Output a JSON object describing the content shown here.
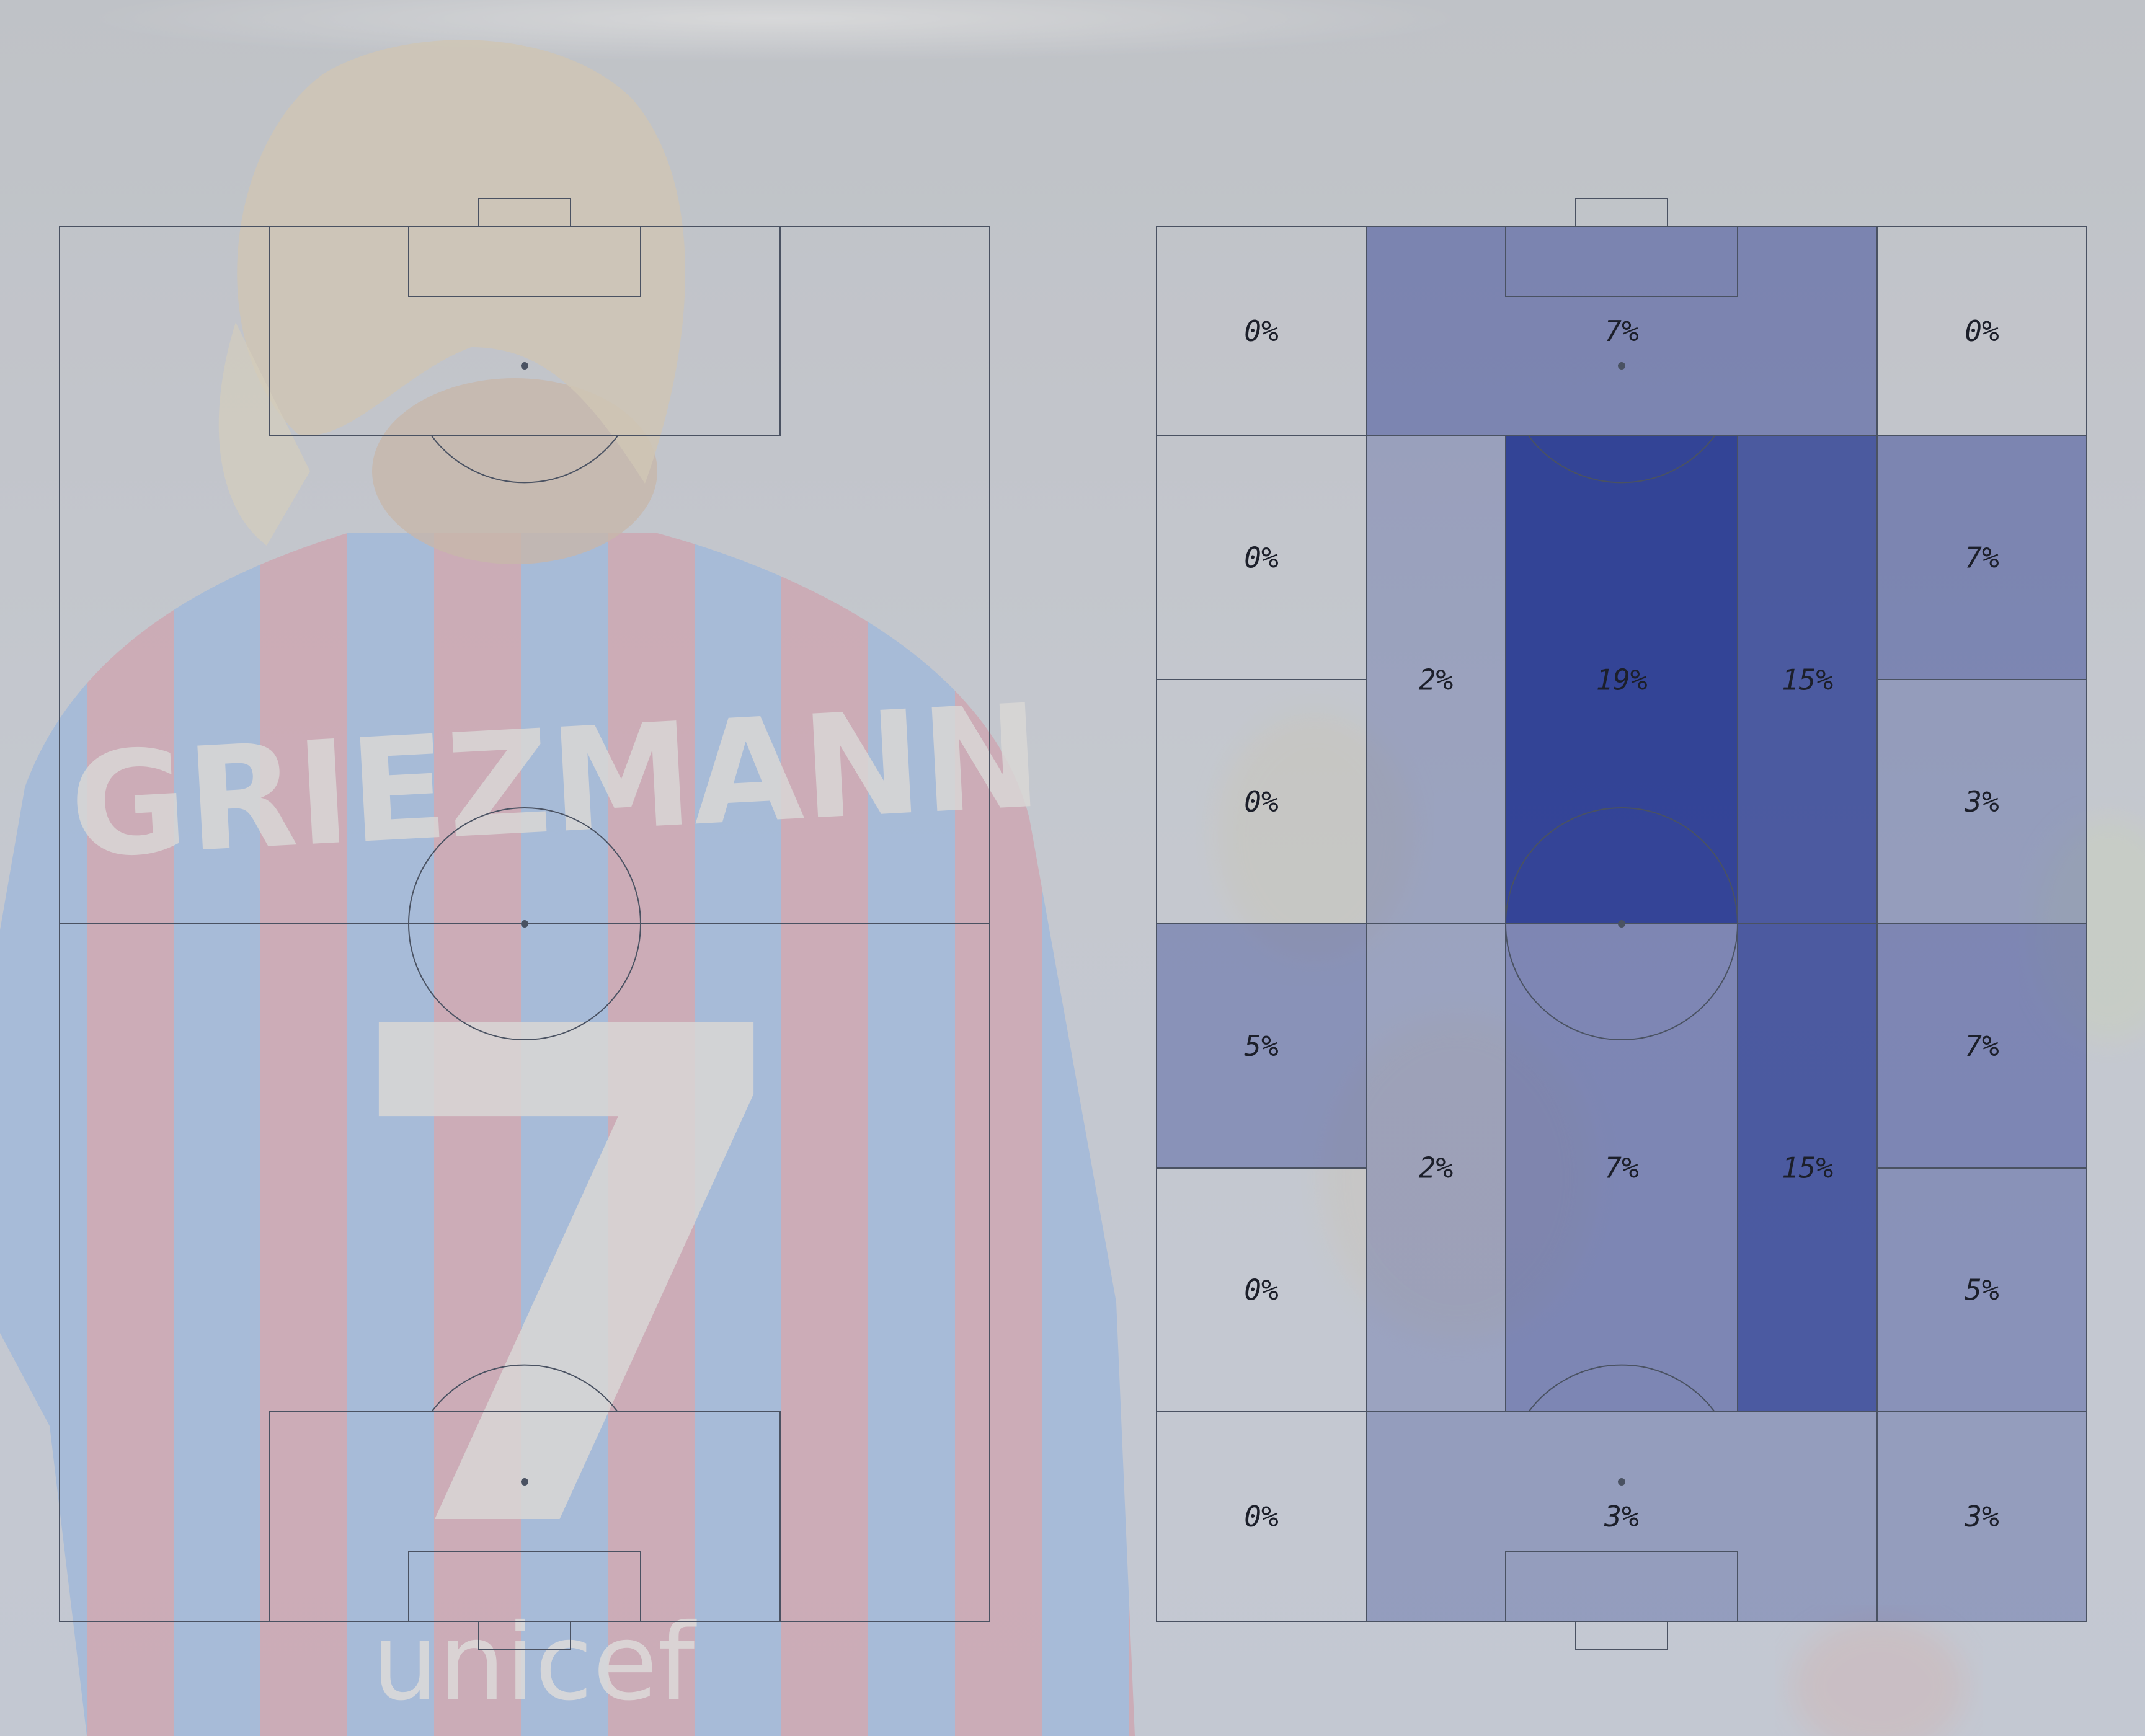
{
  "chart_data": {
    "type": "heatmap",
    "title": "",
    "background_image": "player-back-jersey",
    "jersey_text": {
      "name": "GRIEZMANN",
      "number": "7",
      "sponsor": "unicef"
    },
    "colors": {
      "line": "#4a5262",
      "heat": "#233590",
      "page_tint": "#c7cbd2"
    },
    "pitches": [
      {
        "name": "empty-pitch",
        "zones": []
      },
      {
        "name": "zone-pitch",
        "zones": [
          {
            "id": "top-left",
            "label": "0%",
            "value": 0
          },
          {
            "id": "top-center",
            "label": "7%",
            "value": 7
          },
          {
            "id": "top-right",
            "label": "0%",
            "value": 0
          },
          {
            "id": "att-left-1",
            "label": "0%",
            "value": 0
          },
          {
            "id": "att-left-2",
            "label": "0%",
            "value": 0
          },
          {
            "id": "att-halfspace-left",
            "label": "2%",
            "value": 2
          },
          {
            "id": "att-center",
            "label": "19%",
            "value": 19
          },
          {
            "id": "att-halfspace-right",
            "label": "15%",
            "value": 15
          },
          {
            "id": "att-right-1",
            "label": "7%",
            "value": 7
          },
          {
            "id": "att-right-2",
            "label": "3%",
            "value": 3
          },
          {
            "id": "def-left-1",
            "label": "5%",
            "value": 5
          },
          {
            "id": "def-left-2",
            "label": "0%",
            "value": 0
          },
          {
            "id": "def-halfspace-left",
            "label": "2%",
            "value": 2
          },
          {
            "id": "def-center",
            "label": "7%",
            "value": 7
          },
          {
            "id": "def-halfspace-right",
            "label": "15%",
            "value": 15
          },
          {
            "id": "def-right-1",
            "label": "7%",
            "value": 7
          },
          {
            "id": "def-right-2",
            "label": "5%",
            "value": 5
          },
          {
            "id": "bottom-left",
            "label": "0%",
            "value": 0
          },
          {
            "id": "bottom-center",
            "label": "3%",
            "value": 3
          },
          {
            "id": "bottom-right",
            "label": "3%",
            "value": 3
          }
        ]
      }
    ]
  }
}
